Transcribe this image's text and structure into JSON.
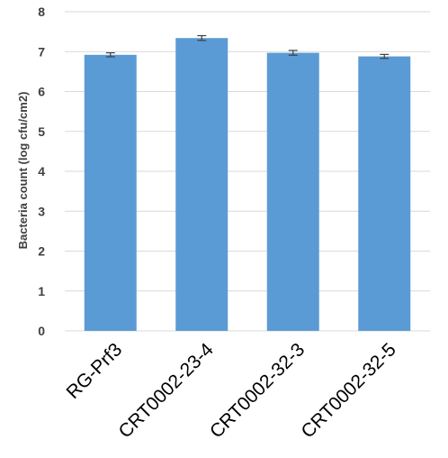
{
  "chart_data": {
    "type": "bar",
    "title": "",
    "xlabel": "",
    "ylabel": "Bacteria count (log cfu/cm2)",
    "categories": [
      "RG-Prf3",
      "CRT0002-23-4",
      "CRT0002-32-3",
      "CRT0002-32-5"
    ],
    "values": [
      6.92,
      7.34,
      6.97,
      6.88
    ],
    "error": [
      0.05,
      0.06,
      0.06,
      0.05
    ],
    "ylim": [
      0,
      8
    ],
    "yticks": [
      0,
      1,
      2,
      3,
      4,
      5,
      6,
      7,
      8
    ],
    "grid": true,
    "legend": "none",
    "colors": {
      "bar": "#5b9bd5",
      "grid": "#d9d9d9",
      "error_bar": "#404040"
    }
  }
}
